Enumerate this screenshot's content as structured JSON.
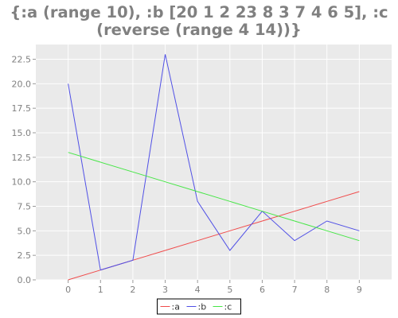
{
  "title_lines": [
    "{:a (range 10), :b [20 1 2 23 8 3 7 4 6 5], :c",
    "(reverse (range 4 14))}"
  ],
  "chart_data": {
    "type": "line",
    "title": "{:a (range 10), :b [20 1 2 23 8 3 7 4 6 5], :c (reverse (range 4 14))}",
    "xlabel": "",
    "ylabel": "",
    "x": [
      0,
      1,
      2,
      3,
      4,
      5,
      6,
      7,
      8,
      9
    ],
    "xlim": [
      -1,
      10
    ],
    "ylim": [
      0,
      24
    ],
    "x_ticks": [
      "0",
      "1",
      "2",
      "3",
      "4",
      "5",
      "6",
      "7",
      "8",
      "9"
    ],
    "y_ticks": [
      "0.0",
      "2.5",
      "5.0",
      "7.5",
      "10.0",
      "12.5",
      "15.0",
      "17.5",
      "20.0",
      "22.5"
    ],
    "y_tick_values": [
      0,
      2.5,
      5,
      7.5,
      10,
      12.5,
      15,
      17.5,
      20,
      22.5
    ],
    "grid": true,
    "legend_position": "bottom-center",
    "background": "#eaeaea",
    "series": [
      {
        "name": ":a",
        "color": "#f04b4b",
        "values": [
          0,
          1,
          2,
          3,
          4,
          5,
          6,
          7,
          8,
          9
        ]
      },
      {
        "name": ":b",
        "color": "#5050e6",
        "values": [
          20,
          1,
          2,
          23,
          8,
          3,
          7,
          4,
          6,
          5
        ]
      },
      {
        "name": ":c",
        "color": "#46e646",
        "values": [
          13,
          12,
          11,
          10,
          9,
          8,
          7,
          6,
          5,
          4
        ]
      }
    ]
  }
}
